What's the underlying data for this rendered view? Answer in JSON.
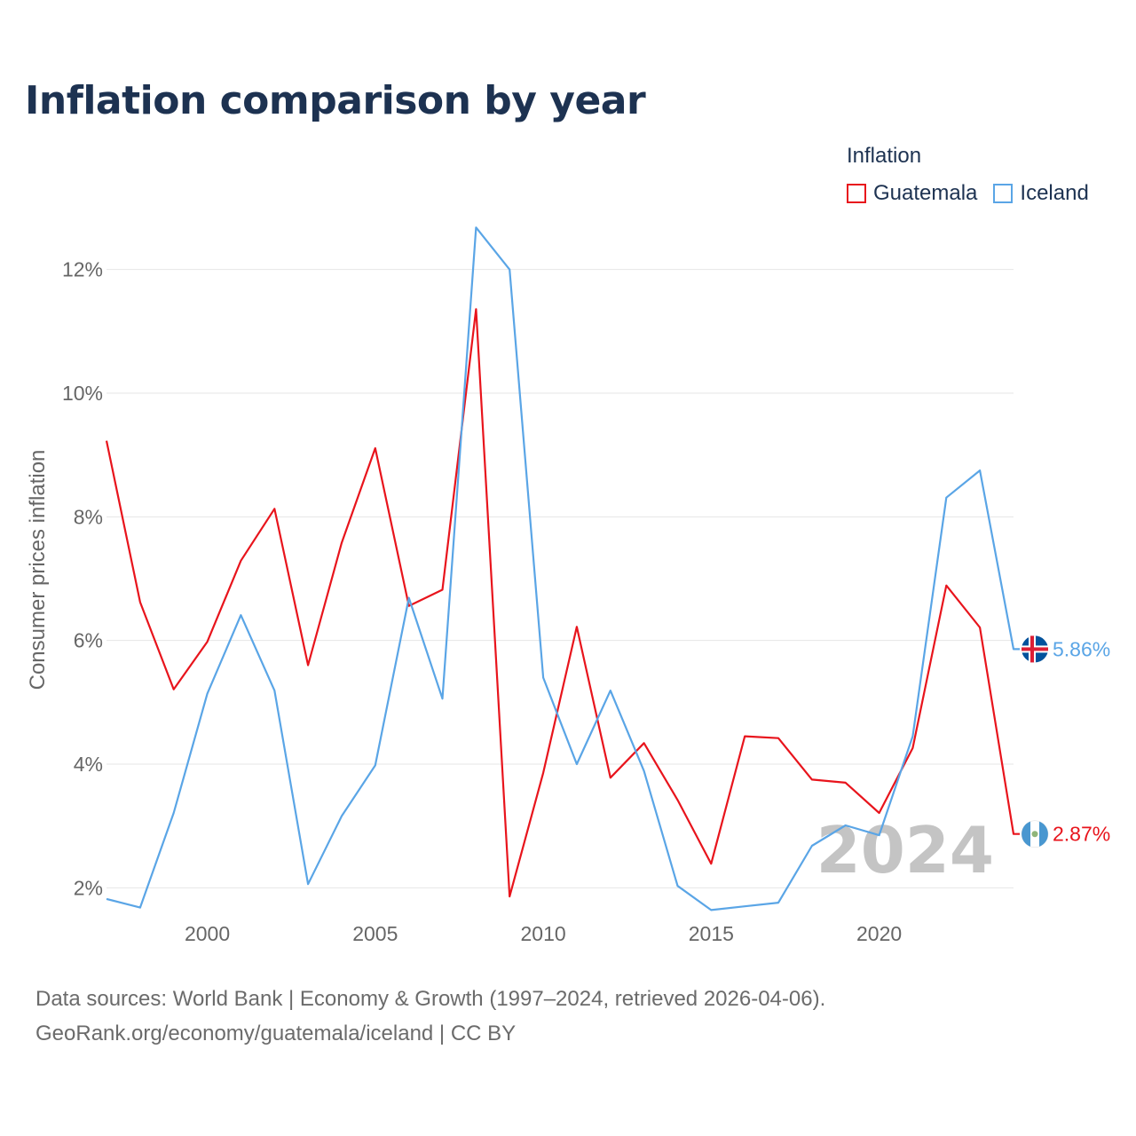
{
  "title": "Inflation comparison by year",
  "legend": {
    "title": "Inflation",
    "items": [
      {
        "name": "Guatemala",
        "color": "#e8141c"
      },
      {
        "name": "Iceland",
        "color": "#5aa5e6"
      }
    ]
  },
  "footer": {
    "line1": "Data sources: World Bank | Economy & Growth (1997–2024, retrieved 2026-04-06).",
    "line2": "GeoRank.org/economy/guatemala/iceland | CC BY"
  },
  "chart_data": {
    "type": "line",
    "title": "Inflation comparison by year",
    "xlabel": "",
    "ylabel": "Consumer prices inflation",
    "xlim": [
      1997,
      2024
    ],
    "ylim": [
      1.0,
      13.0
    ],
    "x_ticks": [
      2000,
      2005,
      2010,
      2015,
      2020
    ],
    "x_tick_labels": [
      "2000",
      "2005",
      "2010",
      "2015",
      "2020"
    ],
    "y_ticks": [
      2,
      4,
      6,
      8,
      10,
      12
    ],
    "y_tick_labels": [
      "2%",
      "4%",
      "6%",
      "8%",
      "10%",
      "12%"
    ],
    "grid": true,
    "watermark_year": "2024",
    "x": [
      1997,
      1998,
      1999,
      2000,
      2001,
      2002,
      2003,
      2004,
      2005,
      2006,
      2007,
      2008,
      2009,
      2010,
      2011,
      2012,
      2013,
      2014,
      2015,
      2016,
      2017,
      2018,
      2019,
      2020,
      2021,
      2022,
      2023,
      2024
    ],
    "series": [
      {
        "name": "Guatemala",
        "color": "#e8141c",
        "end_label": "2.87%",
        "values": [
          9.23,
          6.62,
          5.21,
          5.98,
          7.29,
          8.13,
          5.6,
          7.58,
          9.11,
          6.56,
          6.82,
          11.36,
          1.86,
          3.86,
          6.22,
          3.78,
          4.34,
          3.42,
          2.39,
          4.45,
          4.42,
          3.75,
          3.7,
          3.21,
          4.26,
          6.89,
          6.21,
          2.87
        ]
      },
      {
        "name": "Iceland",
        "color": "#5aa5e6",
        "end_label": "5.86%",
        "values": [
          1.82,
          1.68,
          3.21,
          5.14,
          6.41,
          5.19,
          2.06,
          3.16,
          3.98,
          6.69,
          5.06,
          12.68,
          12.0,
          5.4,
          4.0,
          5.19,
          3.89,
          2.03,
          1.64,
          1.7,
          1.76,
          2.68,
          3.01,
          2.85,
          4.45,
          8.31,
          8.75,
          5.86
        ]
      }
    ]
  }
}
